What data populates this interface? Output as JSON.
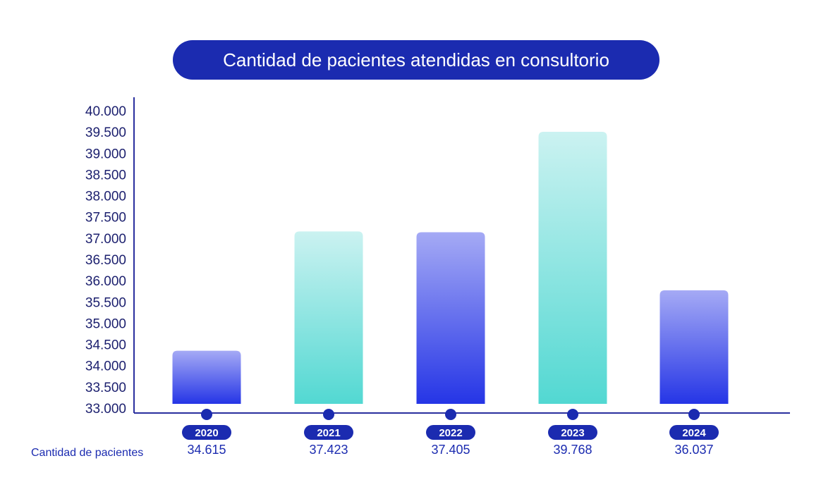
{
  "chart_data": {
    "type": "bar",
    "title": "Cantidad de pacientes atendidas en consultorio",
    "categories": [
      "2020",
      "2021",
      "2022",
      "2023",
      "2024"
    ],
    "series": [
      {
        "name": "Cantidad de pacientes",
        "values": [
          34615,
          37423,
          37405,
          39768,
          36037
        ]
      }
    ],
    "value_labels": [
      "34.615",
      "37.423",
      "37.405",
      "39.768",
      "36.037"
    ],
    "y_tick_labels": [
      "33.000",
      "33.500",
      "34.000",
      "34.500",
      "35.000",
      "35.500",
      "36.000",
      "36.500",
      "37.000",
      "37.500",
      "38.000",
      "38.500",
      "39.000",
      "39.500",
      "40.000"
    ],
    "ylim": [
      33000,
      40000
    ],
    "xlabel": "",
    "ylabel": "",
    "grid": false,
    "bar_styles": [
      "blue",
      "teal",
      "blue",
      "teal",
      "blue"
    ]
  },
  "colors": {
    "dark_blue": "#1b2bb0",
    "axis": "#2a2f9e",
    "blue_top": "#a5aaf5",
    "blue_bottom": "#2535e6",
    "teal_top": "#cbf2f1",
    "teal_bottom": "#52d8d2"
  }
}
